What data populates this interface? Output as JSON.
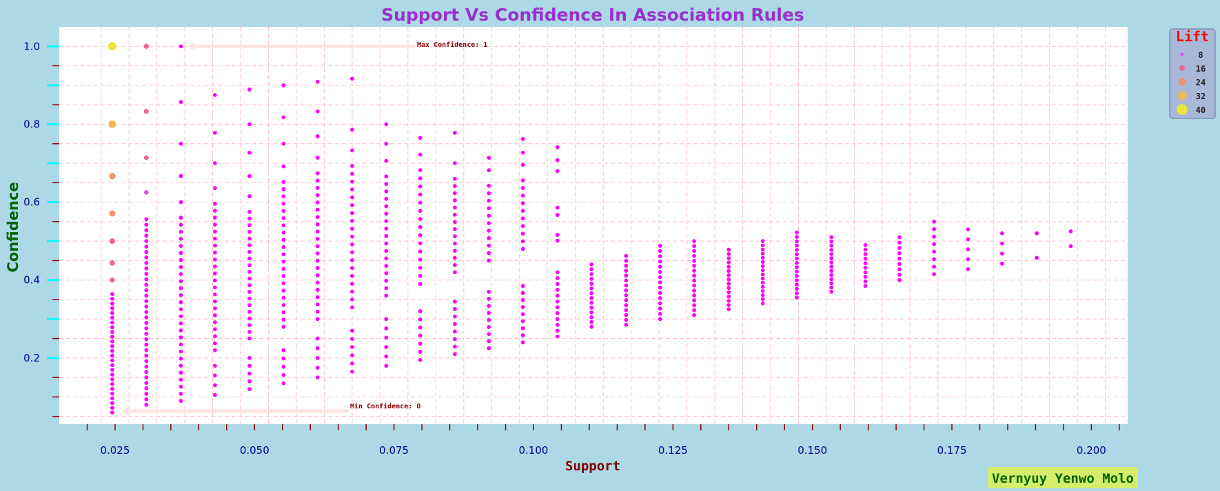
{
  "chart_data": {
    "type": "scatter",
    "title": "Support Vs Confidence In Association Rules",
    "xlabel": "Support",
    "ylabel": "Confidence",
    "xlim": [
      0.015,
      0.2065
    ],
    "ylim": [
      0.03,
      1.05
    ],
    "x_ticks": [
      0.025,
      0.05,
      0.075,
      0.1,
      0.125,
      0.15,
      0.175,
      0.2
    ],
    "x_tick_labels": [
      "0.025",
      "0.050",
      "0.075",
      "0.100",
      "0.125",
      "0.150",
      "0.175",
      "0.200"
    ],
    "y_ticks": [
      0.2,
      0.4,
      0.6,
      0.8,
      1.0
    ],
    "y_tick_labels": [
      "0.2",
      "0.4",
      "0.6",
      "0.8",
      "1.0"
    ],
    "grid": true,
    "size_encoding": "Lift",
    "legend": {
      "title": "Lift",
      "placement": "top-right-outside",
      "entries": [
        {
          "label": "8",
          "value": 8,
          "color": "#e44be6"
        },
        {
          "label": "16",
          "value": 16,
          "color": "#f2619a"
        },
        {
          "label": "24",
          "value": 24,
          "color": "#f4906b"
        },
        {
          "label": "32",
          "value": 32,
          "color": "#f0b859"
        },
        {
          "label": "40",
          "value": 40,
          "color": "#e8e63a"
        }
      ]
    },
    "annotations": [
      {
        "text": "Max Confidence: 1",
        "arrow_to": [
          0.0368,
          1.0
        ],
        "text_at": [
          0.0795,
          1.0
        ]
      },
      {
        "text": "Min Confidence: 0",
        "arrow_to": [
          0.0249,
          0.064
        ],
        "text_at": [
          0.0675,
          0.064
        ]
      }
    ],
    "special_points": [
      {
        "x": 0.0245,
        "y": 1.0,
        "lift": 40
      },
      {
        "x": 0.0245,
        "y": 0.8,
        "lift": 34
      },
      {
        "x": 0.0245,
        "y": 0.667,
        "lift": 26
      },
      {
        "x": 0.0245,
        "y": 0.571,
        "lift": 24
      },
      {
        "x": 0.0245,
        "y": 0.5,
        "lift": 20
      },
      {
        "x": 0.0245,
        "y": 0.444,
        "lift": 18
      },
      {
        "x": 0.0245,
        "y": 0.4,
        "lift": 16
      },
      {
        "x": 0.0306,
        "y": 1.0,
        "lift": 16
      },
      {
        "x": 0.0306,
        "y": 0.833,
        "lift": 14
      },
      {
        "x": 0.0306,
        "y": 0.714,
        "lift": 13
      },
      {
        "x": 0.0306,
        "y": 0.625,
        "lift": 12
      }
    ],
    "columns": [
      {
        "x": 0.0245,
        "ymin": 0.06,
        "ymax": 0.364,
        "n": 26
      },
      {
        "x": 0.0306,
        "ymin": 0.08,
        "ymax": 0.556,
        "n": 35
      },
      {
        "x": 0.0368,
        "ymin": 0.09,
        "ymax": 0.857,
        "upper": [
          1.0,
          0.857,
          0.75,
          0.667,
          0.6
        ],
        "n": 32
      },
      {
        "x": 0.0429,
        "ymin": 0.105,
        "ymax": 0.875,
        "upper": [
          0.875,
          0.778,
          0.7,
          0.636
        ],
        "n": 30,
        "gap": [
          0.18,
          0.22
        ]
      },
      {
        "x": 0.0491,
        "ymin": 0.12,
        "ymax": 0.889,
        "upper": [
          0.889,
          0.8,
          0.727,
          0.667,
          0.615
        ],
        "n": 30,
        "gap": [
          0.2,
          0.25
        ]
      },
      {
        "x": 0.0552,
        "ymin": 0.135,
        "ymax": 0.9,
        "upper": [
          0.9,
          0.818,
          0.75,
          0.692
        ],
        "n": 30,
        "gap": [
          0.22,
          0.28
        ]
      },
      {
        "x": 0.0613,
        "ymin": 0.15,
        "ymax": 0.909,
        "upper": [
          0.909,
          0.833,
          0.769,
          0.714
        ],
        "n": 30,
        "gap": [
          0.25,
          0.3
        ]
      },
      {
        "x": 0.0675,
        "ymin": 0.165,
        "ymax": 0.917,
        "upper": [
          0.917,
          0.786,
          0.733
        ],
        "n": 28,
        "gap": [
          0.27,
          0.33
        ]
      },
      {
        "x": 0.0736,
        "ymin": 0.18,
        "ymax": 0.8,
        "upper": [
          0.8,
          0.75,
          0.706
        ],
        "n": 26,
        "gap": [
          0.3,
          0.36
        ]
      },
      {
        "x": 0.0797,
        "ymin": 0.195,
        "ymax": 0.765,
        "upper": [
          0.765,
          0.722
        ],
        "n": 24,
        "gap": [
          0.32,
          0.39
        ]
      },
      {
        "x": 0.0859,
        "ymin": 0.21,
        "ymax": 0.778,
        "upper": [
          0.778,
          0.7
        ],
        "n": 24,
        "gap": [
          0.345,
          0.42
        ]
      },
      {
        "x": 0.092,
        "ymin": 0.225,
        "ymax": 0.714,
        "upper": [
          0.714,
          0.682
        ],
        "n": 22,
        "gap": [
          0.37,
          0.45
        ]
      },
      {
        "x": 0.0981,
        "ymin": 0.24,
        "ymax": 0.762,
        "upper": [
          0.762,
          0.727,
          0.696
        ],
        "n": 22,
        "gap": [
          0.385,
          0.48
        ]
      },
      {
        "x": 0.1043,
        "ymin": 0.255,
        "ymax": 0.741,
        "upper": [
          0.741,
          0.708,
          0.68,
          0.586,
          0.567,
          0.516
        ],
        "n": 18,
        "gap": [
          0.42,
          0.5
        ]
      },
      {
        "x": 0.1104,
        "ymin": 0.28,
        "ymax": 0.44,
        "n": 14
      },
      {
        "x": 0.1166,
        "ymin": 0.285,
        "ymax": 0.462,
        "n": 15
      },
      {
        "x": 0.1227,
        "ymin": 0.3,
        "ymax": 0.488,
        "n": 15
      },
      {
        "x": 0.1288,
        "ymin": 0.31,
        "ymax": 0.5,
        "n": 16
      },
      {
        "x": 0.135,
        "ymin": 0.325,
        "ymax": 0.478,
        "n": 15
      },
      {
        "x": 0.1411,
        "ymin": 0.34,
        "ymax": 0.5,
        "n": 16
      },
      {
        "x": 0.1472,
        "ymin": 0.355,
        "ymax": 0.522,
        "n": 16
      },
      {
        "x": 0.1534,
        "ymin": 0.37,
        "ymax": 0.51,
        "n": 14
      },
      {
        "x": 0.1595,
        "ymin": 0.385,
        "ymax": 0.49,
        "n": 10
      },
      {
        "x": 0.1656,
        "ymin": 0.4,
        "ymax": 0.51,
        "n": 9
      },
      {
        "x": 0.1718,
        "ymin": 0.415,
        "ymax": 0.55,
        "n": 8
      },
      {
        "x": 0.1779,
        "ymin": 0.428,
        "ymax": 0.53,
        "n": 5
      },
      {
        "x": 0.184,
        "ymin": 0.442,
        "ymax": 0.52,
        "n": 4
      },
      {
        "x": 0.1902,
        "ymin": 0.457,
        "ymax": 0.52,
        "n": 2
      },
      {
        "x": 0.1963,
        "ymin": 0.487,
        "ymax": 0.525,
        "n": 2
      }
    ]
  },
  "signature": "Vernyuy Yenwo Molo",
  "colors": {
    "background": "#add8e6",
    "plot_area": "#ffffff",
    "grid": "#ffc0cb",
    "title": "#9932cc",
    "xlabel": "#800000",
    "ylabel": "#006400",
    "tick_label": "#00008b",
    "x_tick_mark": "#8b0000",
    "y_major_tick": "#00ffff",
    "y_minor_tick": "#8b0000",
    "point": "#ff00ff",
    "arrow": "#ffe4e1",
    "signature_bg": "#d4ed6a",
    "legend_bg": "#a8b8d8"
  }
}
